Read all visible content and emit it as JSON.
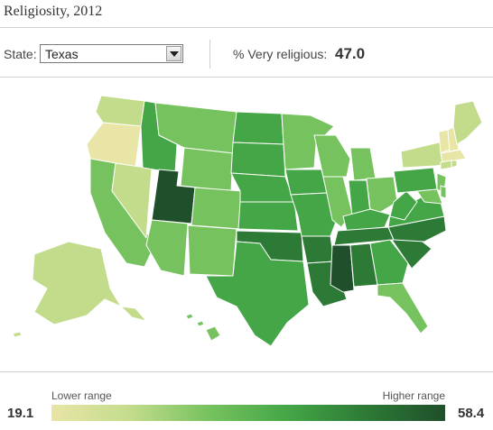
{
  "header": {
    "title": "Religiosity, 2012"
  },
  "controls": {
    "state_label": "State:",
    "state_selected": "Texas",
    "metric_label": "% Very religious:",
    "metric_value": "47.0"
  },
  "legend": {
    "low_label": "Lower range",
    "high_label": "Higher range",
    "min_value": "19.1",
    "max_value": "58.4"
  },
  "colors": {
    "lowest": "#e8e5a6",
    "low": "#c3dc8c",
    "medium": "#76c25e",
    "high": "#44a646",
    "higher": "#2c7a36",
    "highest": "#1f4f2b",
    "border": "#ffffff"
  }
}
